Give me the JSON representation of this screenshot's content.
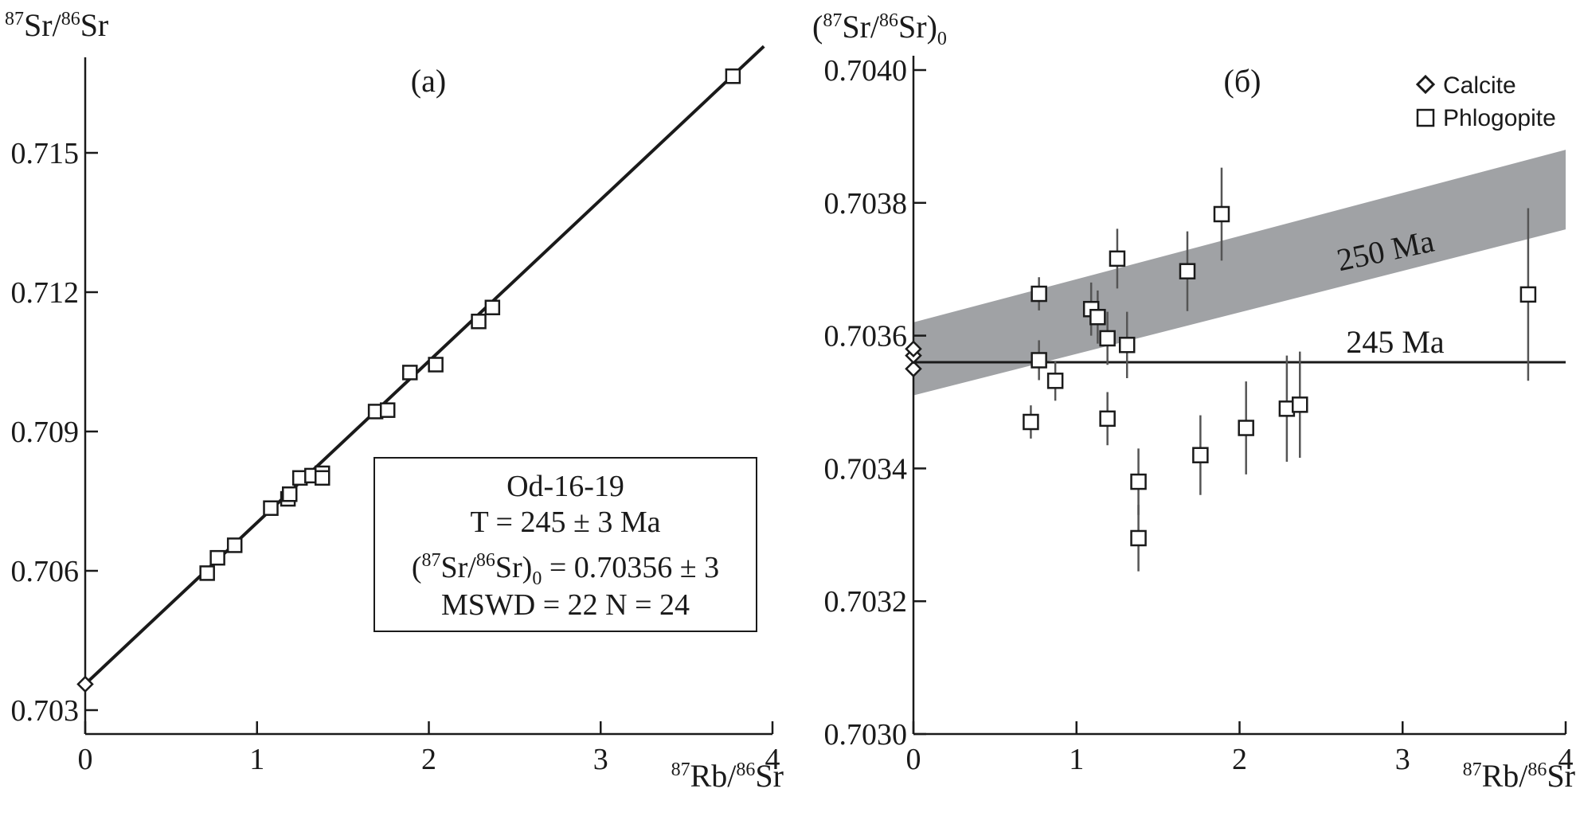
{
  "chart_data": [
    {
      "type": "scatter",
      "panel_label": "(a)",
      "ylabel": "87Sr/86Sr",
      "xlabel": "87Rb/86Sr",
      "xlim": [
        0,
        4
      ],
      "ylim": [
        0.703,
        0.7175
      ],
      "x_ticks": [
        0,
        1,
        2,
        3,
        4
      ],
      "x_tick_labels": [
        "0",
        "1",
        "2",
        "3",
        "4"
      ],
      "y_ticks": [
        0.703,
        0.706,
        0.709,
        0.712,
        0.715
      ],
      "y_tick_labels": [
        "0.703",
        "0.706",
        "0.709",
        "0.712",
        "0.715"
      ],
      "isochron": {
        "slope": 0.003477,
        "intercept": 0.70356
      },
      "series": [
        {
          "name": "Calcite",
          "marker": "diamond",
          "points": [
            [
              0.0,
              0.70356
            ]
          ]
        },
        {
          "name": "Phlogopite",
          "marker": "square",
          "points": [
            [
              0.71,
              0.70595
            ],
            [
              0.77,
              0.70628
            ],
            [
              0.87,
              0.70655
            ],
            [
              1.08,
              0.70735
            ],
            [
              1.18,
              0.70755
            ],
            [
              1.19,
              0.70765
            ],
            [
              1.25,
              0.708
            ],
            [
              1.32,
              0.70805
            ],
            [
              1.38,
              0.7081
            ],
            [
              1.38,
              0.708
            ],
            [
              1.69,
              0.70943
            ],
            [
              1.76,
              0.70946
            ],
            [
              1.89,
              0.71027
            ],
            [
              2.04,
              0.71044
            ],
            [
              2.29,
              0.71137
            ],
            [
              2.37,
              0.71167
            ],
            [
              3.77,
              0.71665
            ]
          ]
        }
      ],
      "annotation_box": {
        "sample": "Od-16-19",
        "age": "T = 245 ± 3 Ma",
        "initial_prefix": "(",
        "initial_iso1": "87",
        "initial_el1": "Sr/",
        "initial_iso2": "86",
        "initial_el2": "Sr)",
        "initial_sub": "0",
        "initial_value": " = 0.70356 ± 3",
        "stats": "MSWD = 22 N = 24"
      }
    },
    {
      "type": "scatter",
      "panel_label": "(б)",
      "ylabel": "(87Sr/86Sr)0",
      "xlabel": "87Rb/86Sr",
      "xlim": [
        0,
        4
      ],
      "ylim": [
        0.703,
        0.704
      ],
      "x_ticks": [
        0,
        1,
        2,
        3,
        4
      ],
      "x_tick_labels": [
        "0",
        "1",
        "2",
        "3",
        "4"
      ],
      "y_ticks": [
        0.703,
        0.7032,
        0.7034,
        0.7036,
        0.7038,
        0.704
      ],
      "y_tick_labels": [
        "0.7030",
        "0.7032",
        "0.7034",
        "0.7036",
        "0.7038",
        "0.7040"
      ],
      "reference_lines": [
        {
          "label": "245 Ma",
          "type": "line",
          "y_start": 0.70356,
          "y_end": 0.70356
        },
        {
          "label": "250 Ma",
          "type": "band",
          "upper_start": 0.70362,
          "upper_end": 0.70388,
          "lower_start": 0.70351,
          "lower_end": 0.70376
        }
      ],
      "legend": [
        {
          "label": "Calcite",
          "marker": "diamond"
        },
        {
          "label": "Phlogopite",
          "marker": "square"
        }
      ],
      "series": [
        {
          "name": "Calcite",
          "marker": "diamond",
          "points": [
            [
              0.0,
              0.70355
            ],
            [
              0.0,
              0.70357
            ],
            [
              0.0,
              0.70358
            ]
          ]
        },
        {
          "name": "Phlogopite",
          "marker": "square",
          "points": [
            {
              "x": 0.72,
              "y": 0.70347,
              "err": 2.5e-05
            },
            {
              "x": 0.77,
              "y": 0.703663,
              "err": 2.5e-05
            },
            {
              "x": 0.77,
              "y": 0.703563,
              "err": 3e-05
            },
            {
              "x": 0.87,
              "y": 0.703532,
              "err": 3e-05
            },
            {
              "x": 1.09,
              "y": 0.70364,
              "err": 4e-05
            },
            {
              "x": 1.13,
              "y": 0.703628,
              "err": 4e-05
            },
            {
              "x": 1.19,
              "y": 0.703596,
              "err": 4e-05
            },
            {
              "x": 1.19,
              "y": 0.703475,
              "err": 4e-05
            },
            {
              "x": 1.25,
              "y": 0.703716,
              "err": 4.5e-05
            },
            {
              "x": 1.31,
              "y": 0.703586,
              "err": 5e-05
            },
            {
              "x": 1.38,
              "y": 0.70338,
              "err": 5e-05
            },
            {
              "x": 1.38,
              "y": 0.703295,
              "err": 5e-05
            },
            {
              "x": 1.68,
              "y": 0.703697,
              "err": 6e-05
            },
            {
              "x": 1.76,
              "y": 0.70342,
              "err": 6e-05
            },
            {
              "x": 1.89,
              "y": 0.703783,
              "err": 7e-05
            },
            {
              "x": 2.04,
              "y": 0.703461,
              "err": 7e-05
            },
            {
              "x": 2.29,
              "y": 0.70349,
              "err": 8e-05
            },
            {
              "x": 2.37,
              "y": 0.703496,
              "err": 8e-05
            },
            {
              "x": 3.77,
              "y": 0.703662,
              "err": 0.00013
            }
          ]
        }
      ]
    }
  ]
}
